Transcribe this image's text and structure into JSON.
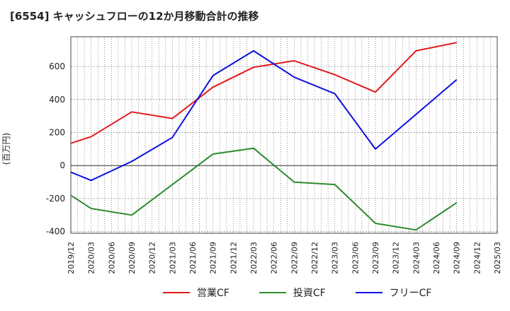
{
  "title": "[6554]  キャッシュフローの12か月移動合計の推移",
  "y_unit": "(百万円)",
  "chart_data": {
    "type": "line",
    "x": [
      "2019/12",
      "2020/03",
      "2020/06",
      "2020/09",
      "2020/12",
      "2021/03",
      "2021/06",
      "2021/09",
      "2021/12",
      "2022/03",
      "2022/06",
      "2022/09",
      "2022/12",
      "2023/03",
      "2023/06",
      "2023/09",
      "2023/12",
      "2024/03",
      "2024/06",
      "2024/09",
      "2024/12",
      "2025/03"
    ],
    "ylim": [
      -410,
      780
    ],
    "yticks": [
      -400,
      -200,
      0,
      200,
      400,
      600
    ],
    "grid": true,
    "legend_position": "bottom",
    "series": [
      {
        "name": "営業CF",
        "color": "#e31a1c",
        "values": [
          135,
          175,
          null,
          325,
          null,
          285,
          null,
          475,
          null,
          595,
          null,
          635,
          null,
          550,
          null,
          445,
          null,
          695,
          null,
          745,
          null,
          null
        ]
      },
      {
        "name": "投資CF",
        "color": "#2e8b2e",
        "values": [
          -180,
          -260,
          null,
          -300,
          null,
          null,
          null,
          70,
          null,
          105,
          null,
          -100,
          null,
          -115,
          null,
          -350,
          null,
          -390,
          null,
          -225,
          null,
          null
        ]
      },
      {
        "name": "フリーCF",
        "color": "#1010e0",
        "values": [
          -40,
          -90,
          null,
          25,
          null,
          170,
          null,
          545,
          null,
          695,
          null,
          535,
          null,
          435,
          null,
          100,
          null,
          null,
          null,
          520,
          null,
          null
        ]
      }
    ]
  }
}
